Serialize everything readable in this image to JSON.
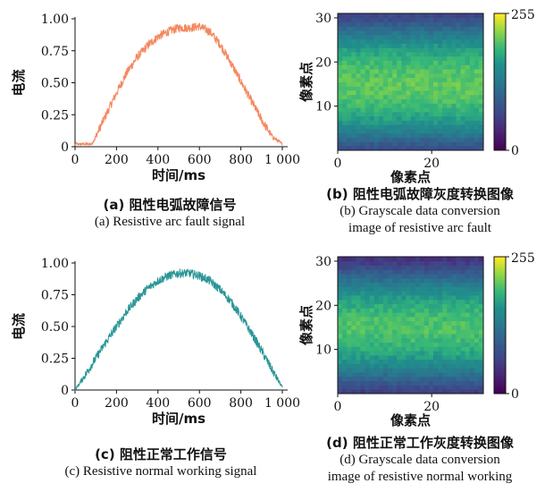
{
  "panels": [
    {
      "id": "a",
      "chart_data": {
        "type": "line",
        "title": "",
        "xlabel": "时间/ms",
        "ylabel": "电流",
        "xlim": [
          0,
          1000
        ],
        "ylim": [
          0,
          1.0
        ],
        "xticks": [
          "0",
          "200",
          "400",
          "600",
          "800",
          "1 000"
        ],
        "yticks": [
          "0",
          "0.25",
          "0.50",
          "0.75",
          "1.00"
        ],
        "grid": false,
        "series": [
          {
            "color": "#f4875e",
            "x": [
              0,
              50,
              80,
              100,
              150,
              200,
              250,
              300,
              350,
              400,
              450,
              500,
              550,
              600,
              650,
              700,
              750,
              800,
              850,
              900,
              950,
              1000
            ],
            "values": [
              0.02,
              0.02,
              0.02,
              0.08,
              0.25,
              0.42,
              0.58,
              0.7,
              0.79,
              0.86,
              0.9,
              0.93,
              0.93,
              0.94,
              0.9,
              0.8,
              0.66,
              0.51,
              0.36,
              0.21,
              0.08,
              0.02
            ]
          }
        ]
      },
      "caption_zh": "(a) 阻性电弧故障信号",
      "caption_en": "(a) Resistive arc fault signal"
    },
    {
      "id": "b",
      "chart_data": {
        "type": "heatmap",
        "title": "",
        "xlabel": "像素点",
        "ylabel": "像素点",
        "xlim": [
          0,
          31
        ],
        "ylim": [
          0,
          31
        ],
        "xticks": [
          "0",
          "20"
        ],
        "yticks": [
          "10",
          "20",
          "30"
        ],
        "colorbar_ticks": [
          "0",
          "255"
        ],
        "colormap": "viridis",
        "row_mean_gray": [
          80,
          95,
          110,
          125,
          140,
          152,
          163,
          172,
          180,
          187,
          193,
          198,
          202,
          205,
          207,
          208,
          207,
          205,
          202,
          198,
          193,
          187,
          180,
          172,
          163,
          152,
          140,
          125,
          110,
          95,
          80,
          70
        ]
      },
      "caption_zh": "(b) 阻性电弧故障灰度转换图像",
      "caption_en_1": "(b) Grayscale data conversion",
      "caption_en_2": "image of resistive arc fault"
    },
    {
      "id": "c",
      "chart_data": {
        "type": "line",
        "title": "",
        "xlabel": "时间/ms",
        "ylabel": "电流",
        "xlim": [
          0,
          1000
        ],
        "ylim": [
          0,
          1.0
        ],
        "xticks": [
          "0",
          "200",
          "400",
          "600",
          "800",
          "1 000"
        ],
        "yticks": [
          "0",
          "0.25",
          "0.50",
          "0.75",
          "1.00"
        ],
        "grid": false,
        "series": [
          {
            "color": "#2a9596",
            "x": [
              0,
              50,
              100,
              150,
              200,
              250,
              300,
              350,
              400,
              450,
              500,
              550,
              600,
              650,
              700,
              750,
              800,
              850,
              900,
              950,
              1000
            ],
            "values": [
              0.0,
              0.12,
              0.25,
              0.38,
              0.5,
              0.62,
              0.72,
              0.8,
              0.86,
              0.9,
              0.92,
              0.92,
              0.9,
              0.86,
              0.79,
              0.7,
              0.58,
              0.45,
              0.31,
              0.16,
              0.02
            ]
          }
        ]
      },
      "caption_zh": "(c) 阻性正常工作信号",
      "caption_en": "(c) Resistive normal working signal"
    },
    {
      "id": "d",
      "chart_data": {
        "type": "heatmap",
        "title": "",
        "xlabel": "像素点",
        "ylabel": "像素点",
        "xlim": [
          0,
          31
        ],
        "ylim": [
          0,
          31
        ],
        "xticks": [
          "0",
          "20"
        ],
        "yticks": [
          "10",
          "20",
          "30"
        ],
        "colorbar_ticks": [
          "0",
          "255"
        ],
        "colormap": "viridis",
        "row_mean_gray": [
          60,
          75,
          90,
          105,
          120,
          134,
          147,
          158,
          168,
          176,
          183,
          189,
          194,
          198,
          200,
          201,
          200,
          198,
          194,
          189,
          183,
          176,
          168,
          158,
          147,
          134,
          120,
          105,
          90,
          75,
          60,
          50
        ]
      },
      "caption_zh": "(d) 阻性正常工作灰度转换图像",
      "caption_en_1": "(d) Grayscale data conversion",
      "caption_en_2": "image of resistive normal working"
    }
  ]
}
